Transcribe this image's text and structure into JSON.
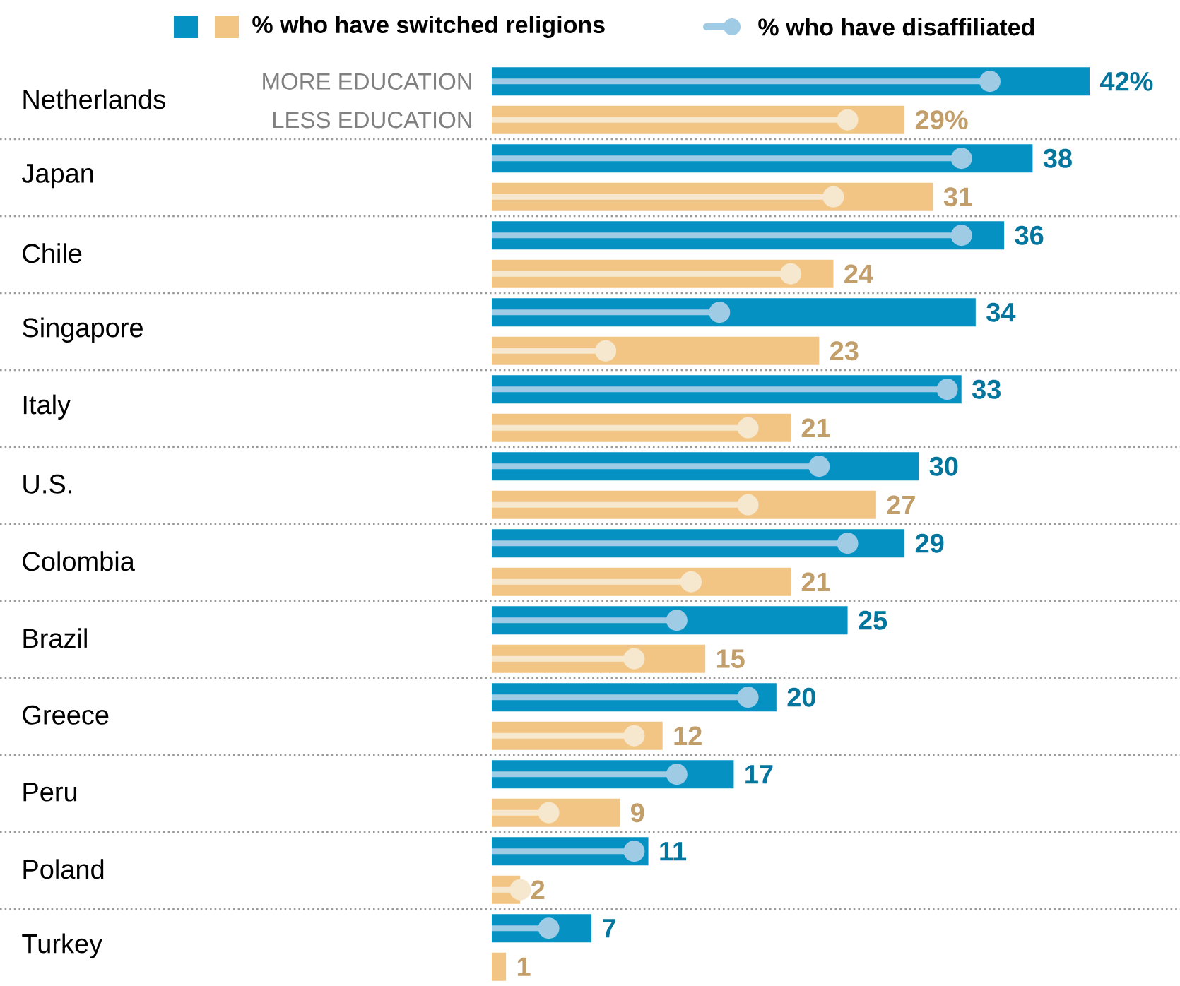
{
  "chart_data": {
    "type": "bar",
    "orientation": "horizontal",
    "legend": "top",
    "annotations": [
      "% who have switched religions"
    ],
    "categories": [
      "Netherlands",
      "Japan",
      "Chile",
      "Singapore",
      "Italy",
      "U.S.",
      "Colombia",
      "Brazil",
      "Greece",
      "Peru",
      "Poland",
      "Turkey"
    ],
    "series": [
      {
        "name": "MORE EDUCATION",
        "color": "#0592c3",
        "values": [
          42,
          38,
          36,
          34,
          33,
          30,
          29,
          25,
          20,
          17,
          11,
          7
        ],
        "value_labels": [
          "42%",
          "38",
          "36",
          "34",
          "33",
          "30",
          "29",
          "25",
          "20",
          "17",
          "11",
          "7"
        ]
      },
      {
        "name": "LESS EDUCATION",
        "color": "#f2c584",
        "values": [
          29,
          31,
          24,
          23,
          21,
          27,
          21,
          15,
          12,
          9,
          2,
          1
        ],
        "value_labels": [
          "29%",
          "31",
          "24",
          "23",
          "21",
          "27",
          "21",
          "15",
          "12",
          "9",
          "2",
          "1"
        ]
      },
      {
        "name": "% who have disaffiliated",
        "type": "lollipop",
        "color": "#9fcbe5",
        "values": [
          35,
          33,
          33,
          16,
          32,
          23,
          25,
          13,
          18,
          13,
          10,
          4
        ]
      },
      {
        "type": "lollipop",
        "color": "#f6e8cf",
        "values": [
          25,
          24,
          21,
          8,
          18,
          18,
          14,
          10,
          10,
          4,
          2,
          null
        ]
      }
    ]
  }
}
